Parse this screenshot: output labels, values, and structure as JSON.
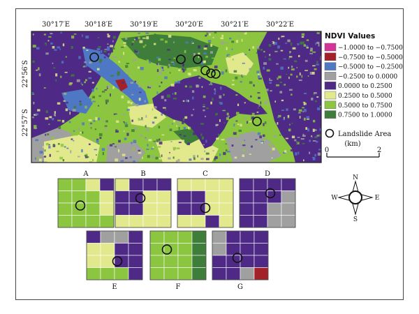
{
  "longitude_labels": [
    "30°17′E",
    "30°18′E",
    "30°19′E",
    "30°20′E",
    "30°21′E",
    "30°22′E"
  ],
  "latitude_labels": [
    "22°56′S",
    "22°57′S"
  ],
  "legend": {
    "title": "NDVI Values",
    "classes": [
      {
        "label": "−1.0000 to −0.7500",
        "color": "#d6339a"
      },
      {
        "label": "−0.7500 to −0.5000",
        "color": "#a3222a"
      },
      {
        "label": "−0.5000 to −0.2500",
        "color": "#4f78c4"
      },
      {
        "label": "−0.2500 to 0.0000",
        "color": "#a0a0a0"
      },
      {
        "label": "0.0000 to 0.2500",
        "color": "#4e2a86"
      },
      {
        "label": "0.2500 to 0.5000",
        "color": "#e2e88c"
      },
      {
        "label": "0.5000 to 0.7500",
        "color": "#8cc53f"
      },
      {
        "label": "0.7500 to 1.0000",
        "color": "#3f7d3a"
      }
    ],
    "landslide_label": "Landslide Area"
  },
  "scale_bar": {
    "unit": "(km)",
    "start": "0",
    "end": "2"
  },
  "compass": {
    "n": "N",
    "s": "S",
    "e": "E",
    "w": "W"
  },
  "insets": [
    {
      "label": "A",
      "grid": [
        [
          6,
          6,
          5,
          4
        ],
        [
          6,
          6,
          6,
          5
        ],
        [
          6,
          6,
          6,
          5
        ],
        [
          6,
          6,
          6,
          6
        ]
      ]
    },
    {
      "label": "B",
      "grid": [
        [
          5,
          4,
          4,
          4
        ],
        [
          4,
          4,
          5,
          5
        ],
        [
          4,
          4,
          5,
          5
        ],
        [
          5,
          5,
          5,
          5
        ]
      ]
    },
    {
      "label": "C",
      "grid": [
        [
          5,
          5,
          5,
          5
        ],
        [
          4,
          4,
          5,
          5
        ],
        [
          4,
          4,
          5,
          5
        ],
        [
          5,
          5,
          4,
          5
        ]
      ]
    },
    {
      "label": "D",
      "grid": [
        [
          4,
          4,
          4,
          4
        ],
        [
          4,
          4,
          4,
          3
        ],
        [
          4,
          4,
          3,
          3
        ],
        [
          4,
          4,
          3,
          3
        ]
      ]
    },
    {
      "label": "E",
      "grid": [
        [
          4,
          3,
          3,
          4
        ],
        [
          5,
          5,
          4,
          4
        ],
        [
          5,
          5,
          4,
          4
        ],
        [
          6,
          6,
          6,
          4
        ]
      ]
    },
    {
      "label": "F",
      "grid": [
        [
          6,
          6,
          6,
          7
        ],
        [
          6,
          6,
          6,
          7
        ],
        [
          6,
          6,
          6,
          7
        ],
        [
          6,
          6,
          6,
          7
        ]
      ]
    },
    {
      "label": "G",
      "grid": [
        [
          3,
          4,
          4,
          4
        ],
        [
          3,
          4,
          4,
          4
        ],
        [
          4,
          4,
          4,
          4
        ],
        [
          4,
          4,
          3,
          1
        ]
      ]
    }
  ]
}
